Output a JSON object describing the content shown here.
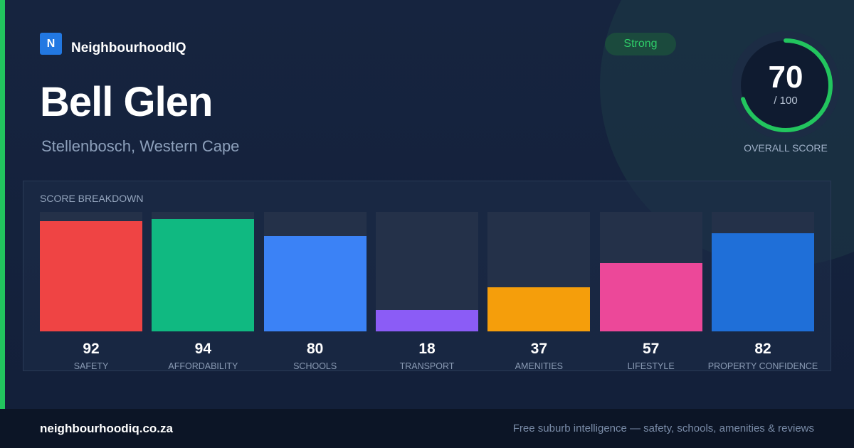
{
  "brand": {
    "logo_letter": "N",
    "name": "NeighbourhoodIQ"
  },
  "suburb": {
    "name": "Bell Glen",
    "location": "Stellenbosch, Western Cape"
  },
  "rating_badge": "Strong",
  "overall": {
    "score": "70",
    "max": "/ 100",
    "label": "OVERALL SCORE",
    "fraction": 0.7,
    "color": "#22c55e"
  },
  "breakdown_title": "SCORE BREAKDOWN",
  "chart_data": {
    "type": "bar",
    "categories": [
      "SAFETY",
      "AFFORDABILITY",
      "SCHOOLS",
      "TRANSPORT",
      "AMENITIES",
      "LIFESTYLE",
      "PROPERTY CONFIDENCE"
    ],
    "values": [
      92,
      94,
      80,
      18,
      37,
      57,
      82
    ],
    "colors": [
      "#ef4444",
      "#10b981",
      "#3b82f6",
      "#8b5cf6",
      "#f59e0b",
      "#ec4899",
      "#1f6fd8"
    ],
    "ylim": [
      0,
      100
    ]
  },
  "footer": {
    "url": "neighbourhoodiq.co.za",
    "tagline": "Free suburb intelligence — safety, schools, amenities & reviews"
  }
}
